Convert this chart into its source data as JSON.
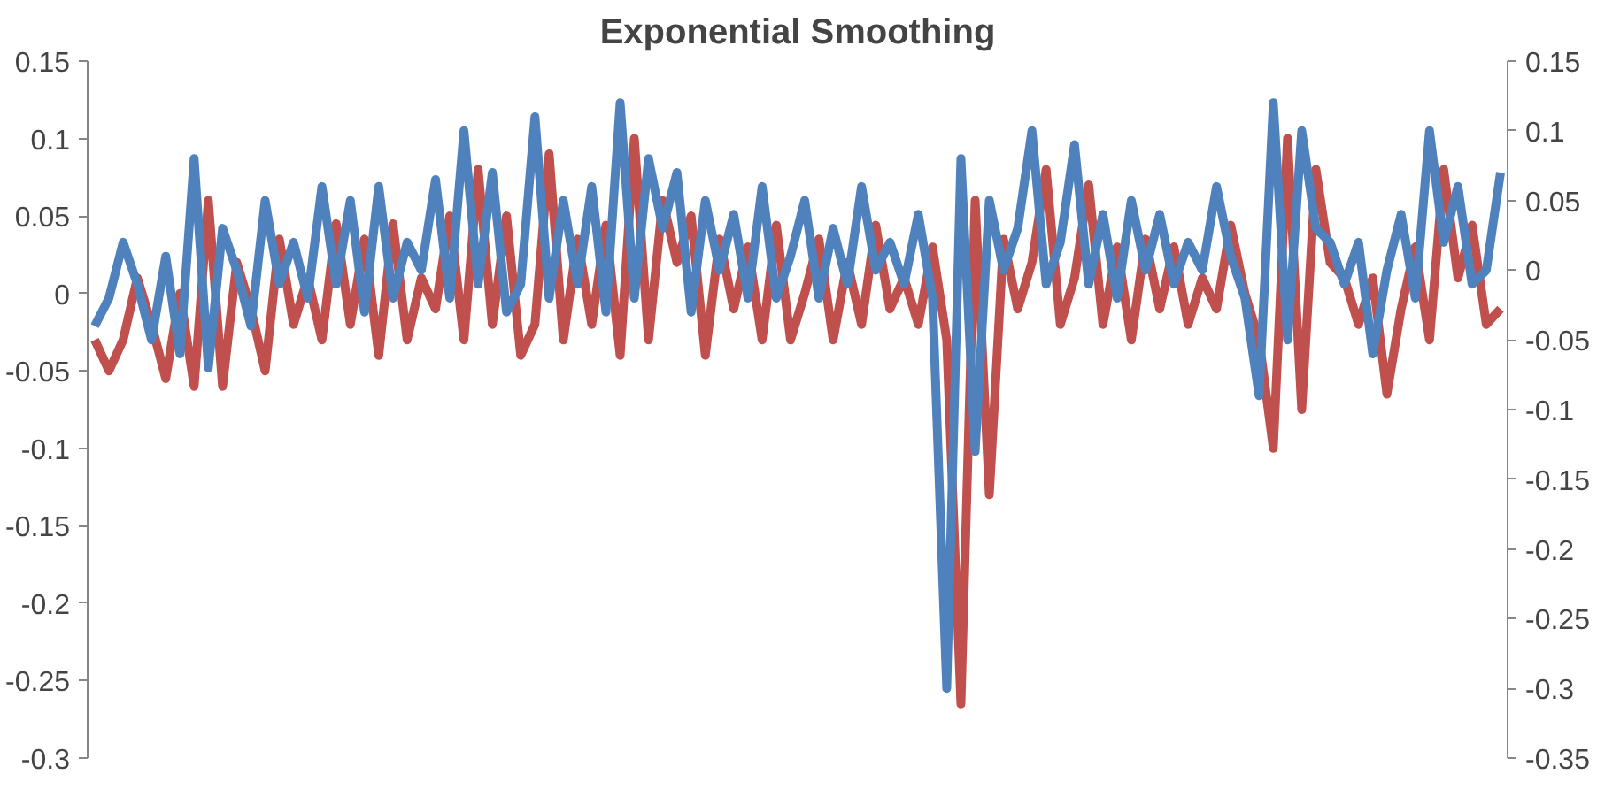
{
  "chart_data": {
    "type": "line",
    "title": "Exponential Smoothing",
    "categories": [
      null,
      null,
      null,
      null,
      null,
      null,
      null,
      null,
      null,
      null,
      null,
      null,
      null,
      null,
      null,
      null,
      null,
      null,
      null,
      null,
      null,
      null,
      null,
      null,
      null,
      null,
      null,
      null,
      null,
      null,
      null,
      null,
      null,
      null,
      null,
      null,
      null,
      null,
      null,
      null,
      null,
      null,
      null,
      null,
      null,
      null,
      null,
      null,
      null,
      null,
      null,
      null,
      null,
      null,
      null,
      null,
      null,
      null,
      null,
      null,
      null,
      null,
      null,
      null,
      null,
      null,
      null,
      null,
      null,
      null,
      null,
      null,
      null,
      null,
      null,
      null,
      null,
      null,
      null,
      null,
      null,
      null,
      null,
      null,
      null,
      null,
      null,
      null,
      null,
      null,
      null,
      null,
      null,
      null,
      null,
      null,
      null,
      null,
      null,
      null
    ],
    "series": [
      {
        "color": "#c0504d",
        "values": [
          -0.03,
          -0.05,
          -0.03,
          0.01,
          -0.02,
          -0.055,
          0.0,
          -0.06,
          0.06,
          -0.06,
          0.02,
          -0.01,
          -0.05,
          0.035,
          -0.02,
          0.01,
          -0.03,
          0.045,
          -0.02,
          0.035,
          -0.04,
          0.045,
          -0.03,
          0.01,
          -0.01,
          0.05,
          -0.03,
          0.08,
          -0.02,
          0.05,
          -0.04,
          -0.02,
          0.09,
          -0.03,
          0.035,
          -0.02,
          0.044,
          -0.04,
          0.1,
          -0.03,
          0.06,
          0.02,
          0.05,
          -0.04,
          0.035,
          -0.01,
          0.03,
          -0.03,
          0.044,
          -0.03,
          0.0,
          0.035,
          -0.03,
          0.02,
          -0.02,
          0.044,
          -0.01,
          0.01,
          -0.02,
          0.03,
          -0.03,
          -0.265,
          0.06,
          -0.13,
          0.035,
          -0.01,
          0.02,
          0.08,
          -0.02,
          0.01,
          0.07,
          -0.02,
          0.03,
          -0.03,
          0.035,
          -0.01,
          0.03,
          -0.02,
          0.01,
          -0.01,
          0.044,
          0.0,
          -0.03,
          -0.1,
          0.1,
          -0.075,
          0.08,
          0.02,
          0.01,
          -0.02,
          0.01,
          -0.065,
          -0.01,
          0.03,
          -0.03,
          0.08,
          0.01,
          0.044,
          -0.02,
          -0.01
        ]
      },
      {
        "color": "#4f81bd",
        "axis": "y2",
        "values": [
          -0.04,
          -0.02,
          0.02,
          -0.01,
          -0.05,
          0.01,
          -0.06,
          0.08,
          -0.07,
          0.03,
          0.0,
          -0.04,
          0.05,
          -0.01,
          0.02,
          -0.02,
          0.06,
          -0.01,
          0.05,
          -0.03,
          0.06,
          -0.02,
          0.02,
          0.0,
          0.065,
          -0.02,
          0.1,
          -0.01,
          0.07,
          -0.03,
          -0.01,
          0.11,
          -0.02,
          0.05,
          -0.01,
          0.06,
          -0.03,
          0.12,
          -0.02,
          0.08,
          0.03,
          0.07,
          -0.03,
          0.05,
          0.0,
          0.04,
          -0.02,
          0.06,
          -0.02,
          0.01,
          0.05,
          -0.02,
          0.03,
          -0.01,
          0.06,
          0.0,
          0.02,
          -0.01,
          0.04,
          -0.02,
          -0.3,
          0.08,
          -0.13,
          0.05,
          0.0,
          0.03,
          0.1,
          -0.01,
          0.02,
          0.09,
          -0.01,
          0.04,
          -0.02,
          0.05,
          0.0,
          0.04,
          -0.01,
          0.02,
          0.0,
          0.06,
          0.01,
          -0.02,
          -0.09,
          0.12,
          -0.05,
          0.1,
          0.03,
          0.02,
          -0.01,
          0.02,
          -0.06,
          0.0,
          0.04,
          -0.02,
          0.1,
          0.02,
          0.06,
          -0.01,
          0.0,
          0.07
        ]
      }
    ],
    "ylim": [
      -0.3,
      0.15
    ],
    "yticks": [
      0.15,
      0.1,
      0.05,
      0,
      -0.05,
      -0.1,
      -0.15,
      -0.2,
      -0.25,
      -0.3
    ],
    "y2lim": [
      -0.35,
      0.15
    ],
    "y2ticks": [
      0.15,
      0.1,
      0.05,
      0,
      -0.05,
      -0.1,
      -0.15,
      -0.2,
      -0.25,
      -0.3,
      -0.35
    ]
  }
}
